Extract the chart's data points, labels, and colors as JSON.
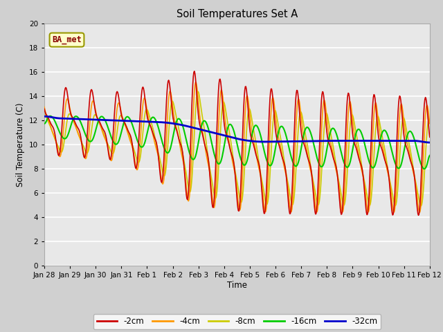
{
  "title": "Soil Temperatures Set A",
  "xlabel": "Time",
  "ylabel": "Soil Temperature (C)",
  "ylim": [
    0,
    20
  ],
  "yticks": [
    0,
    2,
    4,
    6,
    8,
    10,
    12,
    14,
    16,
    18,
    20
  ],
  "xtick_labels": [
    "Jan 28",
    "Jan 29",
    "Jan 30",
    "Jan 31",
    "Feb 1",
    "Feb 2",
    "Feb 3",
    "Feb 4",
    "Feb 5",
    "Feb 6",
    "Feb 7",
    "Feb 8",
    "Feb 9",
    "Feb 10",
    "Feb 11",
    "Feb 12"
  ],
  "legend_label": "BA_met",
  "legend_bg": "#ffffcc",
  "legend_edge": "#999900",
  "fig_bg": "#d0d0d0",
  "plot_bg": "#e8e8e8",
  "grid_color": "#ffffff",
  "colors": {
    "-2cm": "#cc0000",
    "-4cm": "#ff9900",
    "-8cm": "#cccc00",
    "-16cm": "#00cc00",
    "-32cm": "#0000cc"
  },
  "linewidths": {
    "-2cm": 1.2,
    "-4cm": 1.2,
    "-8cm": 1.2,
    "-16cm": 1.5,
    "-32cm": 2.0
  }
}
